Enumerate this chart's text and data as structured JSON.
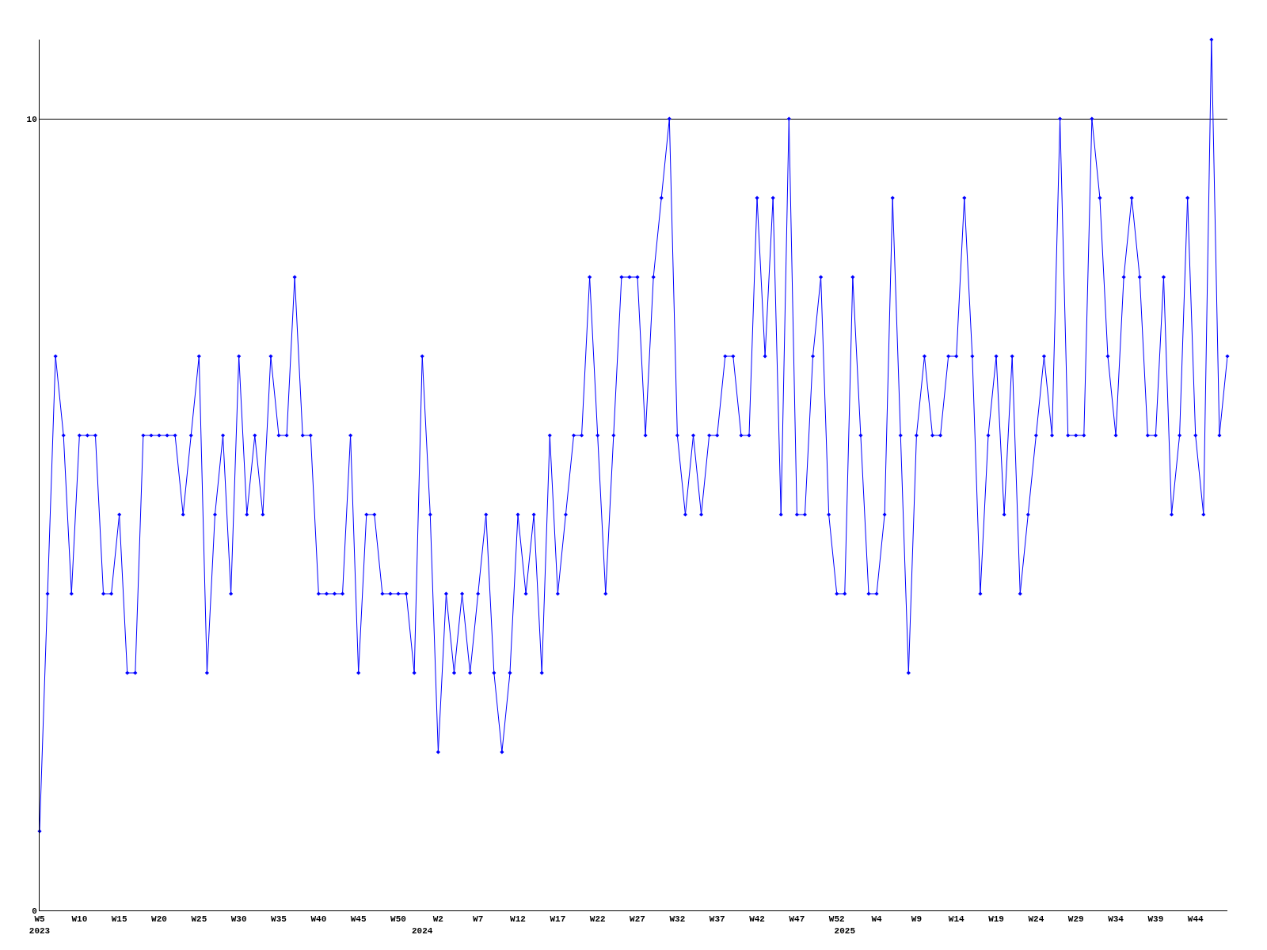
{
  "chart_data": {
    "type": "line",
    "categories": [
      "W5\n2023",
      null,
      null,
      null,
      null,
      "W10",
      null,
      null,
      null,
      null,
      "W15",
      null,
      null,
      null,
      null,
      "W20",
      null,
      null,
      null,
      null,
      "W25",
      null,
      null,
      null,
      null,
      "W30",
      null,
      null,
      null,
      null,
      "W35",
      null,
      null,
      null,
      null,
      "W40",
      null,
      null,
      null,
      null,
      "W45",
      null,
      null,
      null,
      null,
      "W50",
      null,
      null,
      "\n2024",
      null,
      "W2",
      null,
      null,
      null,
      null,
      "W7",
      null,
      null,
      null,
      null,
      "W12",
      null,
      null,
      null,
      null,
      "W17",
      null,
      null,
      null,
      null,
      "W22",
      null,
      null,
      null,
      null,
      "W27",
      null,
      null,
      null,
      null,
      "W32",
      null,
      null,
      null,
      null,
      "W37",
      null,
      null,
      null,
      null,
      "W42",
      null,
      null,
      null,
      null,
      "W47",
      null,
      null,
      null,
      null,
      "W52",
      "\n2025",
      null,
      null,
      null,
      "W4",
      null,
      null,
      null,
      null,
      "W9",
      null,
      null,
      null,
      null,
      "W14",
      null,
      null,
      null,
      null,
      "W19",
      null,
      null,
      null,
      null,
      "W24",
      null,
      null,
      null,
      null,
      "W29",
      null,
      null,
      null,
      null,
      "W34",
      null,
      null,
      null,
      null,
      "W39",
      null,
      null,
      null,
      null,
      "W44",
      null,
      null,
      null,
      null
    ],
    "series": [
      {
        "color": "#0000ff",
        "values": [
          1,
          4,
          7,
          6,
          4,
          6,
          6,
          6,
          4,
          4,
          5,
          3,
          3,
          6,
          6,
          6,
          6,
          6,
          5,
          6,
          7,
          3,
          5,
          6,
          4,
          7,
          5,
          6,
          5,
          7,
          6,
          6,
          8,
          6,
          6,
          4,
          4,
          4,
          4,
          6,
          3,
          5,
          5,
          4,
          4,
          4,
          4,
          3,
          7,
          5,
          2,
          4,
          3,
          4,
          3,
          4,
          5,
          3,
          2,
          3,
          5,
          4,
          5,
          3,
          6,
          4,
          5,
          6,
          6,
          8,
          6,
          4,
          6,
          8,
          8,
          8,
          6,
          8,
          9,
          10,
          6,
          5,
          6,
          5,
          6,
          6,
          7,
          7,
          6,
          6,
          9,
          7,
          9,
          5,
          10,
          5,
          5,
          7,
          8,
          5,
          4,
          4,
          8,
          6,
          4,
          4,
          5,
          9,
          6,
          3,
          6,
          7,
          6,
          6,
          7,
          7,
          9,
          7,
          4,
          6,
          7,
          5,
          7,
          4,
          5,
          6,
          7,
          6,
          10,
          6,
          6,
          6,
          10,
          9,
          7,
          6,
          8,
          9,
          8,
          6,
          6,
          8,
          5,
          6,
          9,
          6,
          5,
          11,
          6,
          7
        ]
      }
    ],
    "ylim": [
      0,
      11
    ],
    "yticks": [
      0,
      10
    ],
    "grid": "y",
    "marker": "diamond",
    "line_style": "solid",
    "legend": false
  }
}
